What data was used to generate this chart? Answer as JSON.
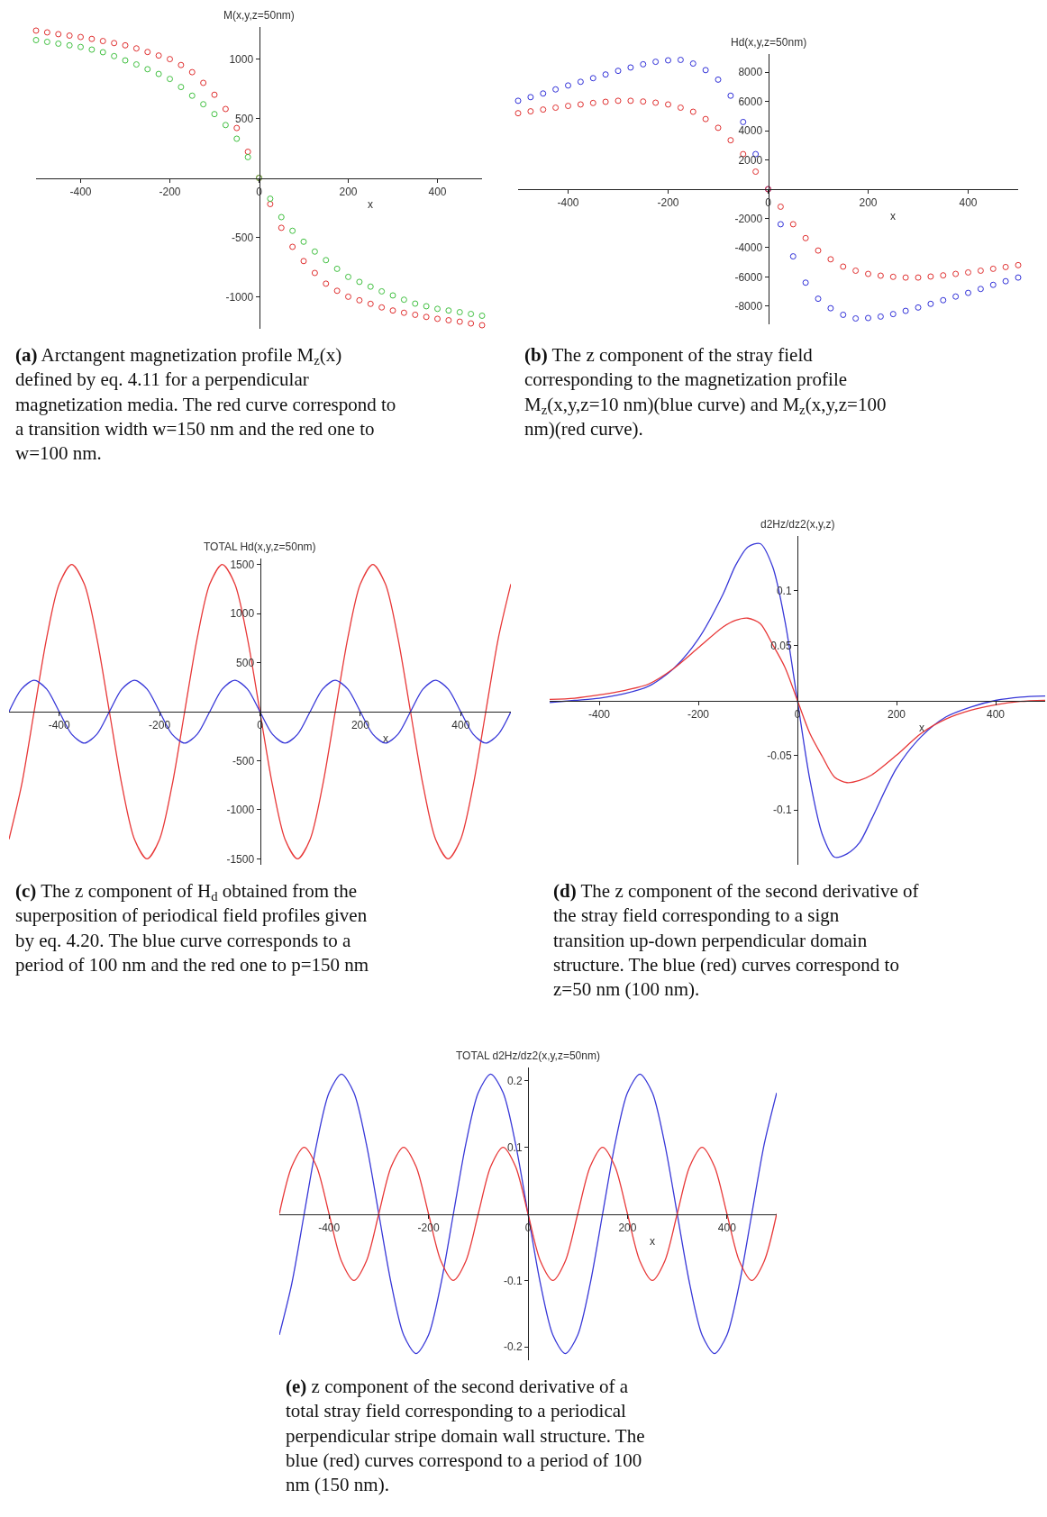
{
  "chart_data": [
    {
      "type": "scatter",
      "marker": "circle",
      "ylabel": "M(x,y,z=50nm)",
      "xlabel": "x",
      "x": [
        -500,
        -475,
        -450,
        -425,
        -400,
        -375,
        -350,
        -325,
        -300,
        -275,
        -250,
        -225,
        -200,
        -175,
        -150,
        -125,
        -100,
        -75,
        -50,
        -25,
        0,
        25,
        50,
        75,
        100,
        125,
        150,
        175,
        200,
        225,
        250,
        275,
        300,
        325,
        350,
        375,
        400,
        425,
        450,
        475,
        500
      ],
      "series": [
        {
          "color": "#e03030",
          "values": [
            1240,
            1225,
            1210,
            1198,
            1186,
            1170,
            1152,
            1135,
            1116,
            1090,
            1060,
            1030,
            1000,
            950,
            890,
            800,
            700,
            580,
            420,
            220,
            0,
            -220,
            -420,
            -580,
            -700,
            -800,
            -890,
            -950,
            -1000,
            -1030,
            -1060,
            -1090,
            -1116,
            -1135,
            -1152,
            -1170,
            -1186,
            -1198,
            -1210,
            -1225,
            -1240
          ]
        },
        {
          "color": "#40c040",
          "values": [
            1160,
            1145,
            1130,
            1116,
            1102,
            1080,
            1058,
            1025,
            989,
            955,
            915,
            875,
            833,
            765,
            692,
            620,
            537,
            445,
            330,
            175,
            0,
            -175,
            -330,
            -445,
            -537,
            -620,
            -692,
            -765,
            -833,
            -875,
            -915,
            -955,
            -989,
            -1025,
            -1058,
            -1080,
            -1102,
            -1116,
            -1130,
            -1145,
            -1160
          ]
        }
      ],
      "xlim": [
        -500,
        500
      ],
      "ylim": [
        -1270,
        1270
      ],
      "xticks": [
        -400,
        -200,
        0,
        200,
        400
      ],
      "yticks": [
        -1000,
        -500,
        500,
        1000
      ],
      "annotations": [
        "(a) Arctangent magnetization profile M$_{z}$(x) defined by eq. 4.11 for a perpendicular magnetization media. The red curve correspond to a transition width w=150 nm and the red one to w=100 nm."
      ]
    },
    {
      "type": "scatter",
      "marker": "circle",
      "ylabel": "Hd(x,y,z=50nm)",
      "xlabel": "x",
      "x": [
        -500,
        -475,
        -450,
        -425,
        -400,
        -375,
        -350,
        -325,
        -300,
        -275,
        -250,
        -225,
        -200,
        -175,
        -150,
        -125,
        -100,
        -75,
        -50,
        -25,
        0,
        25,
        50,
        75,
        100,
        125,
        150,
        175,
        200,
        225,
        250,
        275,
        300,
        325,
        350,
        375,
        400,
        425,
        450,
        475,
        500
      ],
      "series": [
        {
          "color": "#3030d8",
          "values": [
            6050,
            6300,
            6550,
            6830,
            7100,
            7350,
            7600,
            7850,
            8100,
            8330,
            8550,
            8720,
            8820,
            8850,
            8600,
            8150,
            7500,
            6400,
            4600,
            2400,
            0,
            -2400,
            -4600,
            -6400,
            -7500,
            -8150,
            -8600,
            -8850,
            -8820,
            -8720,
            -8550,
            -8330,
            -8100,
            -7850,
            -7600,
            -7350,
            -7100,
            -6830,
            -6550,
            -6300,
            -6050
          ]
        },
        {
          "color": "#e03030",
          "values": [
            5200,
            5330,
            5450,
            5580,
            5700,
            5800,
            5900,
            5980,
            6050,
            6050,
            6000,
            5920,
            5800,
            5580,
            5300,
            4800,
            4200,
            3350,
            2400,
            1200,
            0,
            -1200,
            -2400,
            -3350,
            -4200,
            -4800,
            -5300,
            -5580,
            -5800,
            -5920,
            -6000,
            -6050,
            -6050,
            -5980,
            -5900,
            -5800,
            -5700,
            -5580,
            -5450,
            -5330,
            -5200
          ]
        }
      ],
      "xlim": [
        -500,
        500
      ],
      "ylim": [
        -9250,
        9250
      ],
      "xticks": [
        -400,
        -200,
        0,
        200,
        400
      ],
      "yticks": [
        -8000,
        -6000,
        -4000,
        -2000,
        2000,
        4000,
        6000,
        8000
      ],
      "annotations": [
        "(b) The z component of the stray field corresponding to the magnetization profile M$_{z}$(x,y,z=10 nm)(blue curve) and M$_{z}$(x,y,z=100 nm)(red curve)."
      ]
    },
    {
      "type": "line",
      "ylabel": "TOTAL Hd(x,y,z=50nm)",
      "xlabel": "x",
      "x": [
        -500,
        -475,
        -450,
        -425,
        -400,
        -375,
        -350,
        -325,
        -300,
        -275,
        -250,
        -225,
        -200,
        -175,
        -150,
        -125,
        -100,
        -75,
        -50,
        -25,
        0,
        25,
        50,
        75,
        100,
        125,
        150,
        175,
        200,
        225,
        250,
        275,
        300,
        325,
        350,
        375,
        400,
        425,
        450,
        475,
        500
      ],
      "series": [
        {
          "color": "#e83838",
          "values": [
            -1300,
            -750,
            0,
            750,
            1300,
            1500,
            1300,
            750,
            0,
            -750,
            -1300,
            -1500,
            -1300,
            -750,
            0,
            750,
            1300,
            1500,
            1300,
            750,
            0,
            -750,
            -1300,
            -1500,
            -1300,
            -750,
            0,
            750,
            1300,
            1500,
            1300,
            750,
            0,
            -750,
            -1300,
            -1500,
            -1300,
            -750,
            0,
            750,
            1300
          ]
        },
        {
          "color": "#3838d8",
          "values": [
            0,
            230,
            320,
            230,
            0,
            -230,
            -320,
            -230,
            0,
            230,
            320,
            230,
            0,
            -230,
            -320,
            -230,
            0,
            230,
            320,
            230,
            0,
            -230,
            -320,
            -230,
            0,
            230,
            320,
            230,
            0,
            -230,
            -320,
            -230,
            0,
            230,
            320,
            230,
            0,
            -230,
            -320,
            -230,
            0
          ]
        }
      ],
      "xlim": [
        -500,
        500
      ],
      "ylim": [
        -1560,
        1560
      ],
      "xticks": [
        -400,
        -200,
        0,
        200,
        400
      ],
      "yticks": [
        -1500,
        -1000,
        -500,
        500,
        1000,
        1500
      ],
      "annotations": [
        "(c) The z component of H$_{d}$ obtained from the superposition of periodical field profiles given by eq. 4.20. The blue curve corresponds to a period of 100 nm and the red one to p=150 nm"
      ]
    },
    {
      "type": "line",
      "ylabel": "d2Hz/dz2(x,y,z)",
      "xlabel": "x",
      "x": [
        -500,
        -450,
        -400,
        -350,
        -300,
        -250,
        -200,
        -150,
        -125,
        -100,
        -75,
        -50,
        -25,
        0,
        25,
        50,
        75,
        100,
        125,
        150,
        200,
        250,
        300,
        350,
        400,
        450,
        500
      ],
      "series": [
        {
          "color": "#3838d8",
          "values": [
            -0.002,
            0,
            0.002,
            0.006,
            0.013,
            0.029,
            0.056,
            0.097,
            0.123,
            0.14,
            0.143,
            0.122,
            0.072,
            0,
            -0.072,
            -0.122,
            -0.143,
            -0.14,
            -0.13,
            -0.108,
            -0.062,
            -0.033,
            -0.015,
            -0.006,
            0,
            0.003,
            0.004
          ]
        },
        {
          "color": "#e83838",
          "values": [
            0.001,
            0.002,
            0.005,
            0.009,
            0.015,
            0.029,
            0.048,
            0.067,
            0.073,
            0.075,
            0.07,
            0.051,
            0.03,
            0,
            -0.03,
            -0.051,
            -0.07,
            -0.075,
            -0.073,
            -0.068,
            -0.05,
            -0.03,
            -0.017,
            -0.009,
            -0.004,
            -0.001,
            0
          ]
        }
      ],
      "xlim": [
        -500,
        500
      ],
      "ylim": [
        -0.15,
        0.15
      ],
      "xticks": [
        -400,
        -200,
        0,
        200,
        400
      ],
      "yticks": [
        -0.1,
        -0.05,
        0.05,
        0.1
      ],
      "annotations": [
        "(d) The z component of the second derivative of the stray field corresponding to a sign transition up-down perpendicular domain structure. The blue (red) curves correspond to z=50 nm (100 nm)."
      ]
    },
    {
      "type": "line",
      "ylabel": "TOTAL d2Hz/dz2(x,y,z=50nm)",
      "xlabel": "x",
      "x": [
        -500,
        -475,
        -450,
        -425,
        -400,
        -375,
        -350,
        -325,
        -300,
        -275,
        -250,
        -225,
        -200,
        -175,
        -150,
        -125,
        -100,
        -75,
        -50,
        -25,
        0,
        25,
        50,
        75,
        100,
        125,
        150,
        175,
        200,
        225,
        250,
        275,
        300,
        325,
        350,
        375,
        400,
        425,
        450,
        475,
        500
      ],
      "series": [
        {
          "color": "#3838d8",
          "values": [
            -0.182,
            -0.105,
            0,
            0.105,
            0.182,
            0.21,
            0.182,
            0.105,
            0,
            -0.105,
            -0.182,
            -0.21,
            -0.182,
            -0.105,
            0,
            0.105,
            0.182,
            0.21,
            0.182,
            0.105,
            0,
            -0.105,
            -0.182,
            -0.21,
            -0.182,
            -0.105,
            0,
            0.105,
            0.182,
            0.21,
            0.182,
            0.105,
            0,
            -0.105,
            -0.182,
            -0.21,
            -0.182,
            -0.105,
            0,
            0.105,
            0.182
          ]
        },
        {
          "color": "#e83838",
          "values": [
            0,
            0.071,
            0.1,
            0.071,
            0,
            -0.071,
            -0.1,
            -0.071,
            0,
            0.071,
            0.1,
            0.071,
            0,
            -0.071,
            -0.1,
            -0.071,
            0,
            0.071,
            0.1,
            0.071,
            0,
            -0.071,
            -0.1,
            -0.071,
            0,
            0.071,
            0.1,
            0.071,
            0,
            -0.071,
            -0.1,
            -0.071,
            0,
            0.071,
            0.1,
            0.071,
            0,
            -0.071,
            -0.1,
            -0.071,
            0
          ]
        }
      ],
      "xlim": [
        -500,
        500
      ],
      "ylim": [
        -0.22,
        0.22
      ],
      "xticks": [
        -400,
        -200,
        0,
        200,
        400
      ],
      "yticks": [
        -0.2,
        -0.1,
        0.1,
        0.2
      ],
      "annotations": [
        "(e) z component of the second derivative of a total stray field corresponding to a periodical perpendicular stripe domain wall structure. The blue (red) curves correspond to a period of 100 nm (150 nm)."
      ]
    }
  ]
}
